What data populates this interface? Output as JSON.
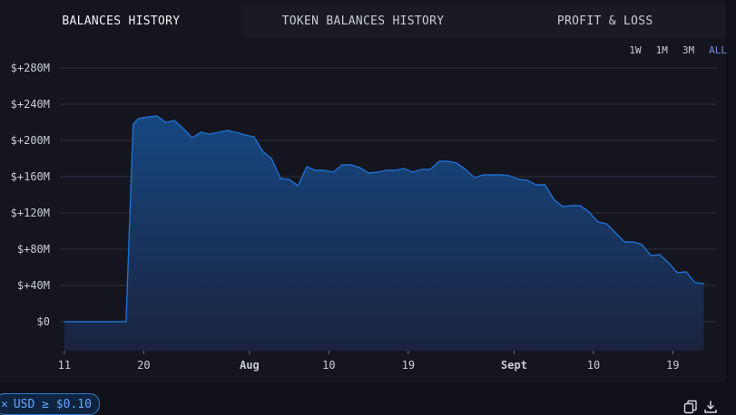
{
  "tabs": [
    {
      "label": "BALANCES HISTORY",
      "active": true
    },
    {
      "label": "TOKEN BALANCES HISTORY",
      "active": false
    },
    {
      "label": "PROFIT & LOSS",
      "active": false
    }
  ],
  "ranges": [
    {
      "label": "1W",
      "selected": false
    },
    {
      "label": "1M",
      "selected": false
    },
    {
      "label": "3M",
      "selected": false
    },
    {
      "label": "ALL",
      "selected": true
    }
  ],
  "filter": {
    "close_glyph": "✕",
    "text": "USD ≥ $0.10"
  },
  "icons": [
    "copy-icon",
    "download-icon"
  ],
  "colors": {
    "area_fill": "#15365f",
    "line": "#1f6fd0",
    "selected_range": "#7b8bd8",
    "chip": "#2f7bd6"
  },
  "chart_data": {
    "type": "area",
    "y_tick_labels": [
      "$0",
      "$+40M",
      "$+80M",
      "$+120M",
      "$+160M",
      "$+200M",
      "$+240M",
      "$+280M"
    ],
    "y_ticks": [
      0,
      40,
      80,
      120,
      160,
      200,
      240,
      280
    ],
    "ylim": [
      -32,
      280
    ],
    "y_unit": "M USD",
    "x_tick_labels": [
      "11",
      "20",
      "Aug",
      "10",
      "19",
      "Sept",
      "10",
      "19"
    ],
    "x_tick_days": [
      0,
      9,
      21,
      30,
      39,
      51,
      60,
      69
    ],
    "x_bold": [
      false,
      false,
      true,
      false,
      false,
      true,
      false,
      false
    ],
    "xlim": [
      -0.5,
      74
    ],
    "series": [
      {
        "x": [
          0,
          7,
          7.8,
          8.4,
          9.5,
          10.5,
          11.5,
          12.5,
          13.5,
          14.5,
          15.5,
          16.5,
          17.5,
          18.5,
          19.5,
          20.5,
          21.5,
          22.5,
          23.5,
          24.5,
          25.5,
          26.5,
          27.5,
          28.5,
          29.5,
          30.5,
          31.5,
          32.5,
          33.5,
          34.5,
          35.5,
          36.5,
          37.5,
          38.5,
          39.5,
          40.5,
          41.5,
          42.5,
          43.5,
          44.5,
          45.5,
          46.5,
          47.5,
          48.5,
          49.5,
          50.5,
          51.5,
          52.5,
          53.5,
          54.5,
          55.5,
          56.5,
          57.5,
          58.5,
          59.5,
          60.5,
          61.5,
          62.5,
          63.5,
          64.5,
          65.5,
          66.5,
          67.5,
          68.5,
          69.5,
          70.5,
          71.5,
          72.5
        ],
        "values": [
          0,
          0,
          218,
          224,
          226,
          227,
          220,
          222,
          213,
          203,
          209,
          207,
          209,
          211,
          209,
          206,
          204,
          188,
          180,
          158,
          157,
          150,
          171,
          167,
          167,
          165,
          173,
          173,
          170,
          164,
          165,
          167,
          167,
          169,
          165,
          168,
          168,
          177,
          177,
          175,
          168,
          159,
          162,
          162,
          162,
          161,
          157,
          156,
          151,
          151,
          135,
          127,
          128,
          128,
          121,
          110,
          108,
          98,
          88,
          88,
          85,
          73,
          74,
          65,
          54,
          55,
          43,
          42
        ]
      }
    ]
  }
}
